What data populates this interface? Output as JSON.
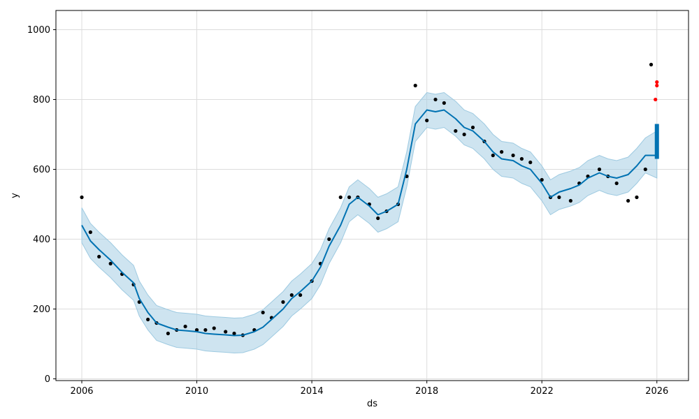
{
  "chart_data": {
    "type": "line",
    "xlabel": "ds",
    "ylabel": "y",
    "xlim": [
      2005.1,
      2027.1
    ],
    "ylim": [
      -5,
      1055
    ],
    "x_ticks": [
      {
        "value": 2006,
        "label": "2006"
      },
      {
        "value": 2010,
        "label": "2010"
      },
      {
        "value": 2014,
        "label": "2014"
      },
      {
        "value": 2018,
        "label": "2018"
      },
      {
        "value": 2022,
        "label": "2022"
      },
      {
        "value": 2026,
        "label": "2026"
      }
    ],
    "y_ticks": [
      {
        "value": 0,
        "label": "0"
      },
      {
        "value": 200,
        "label": "200"
      },
      {
        "value": 400,
        "label": "400"
      },
      {
        "value": 600,
        "label": "600"
      },
      {
        "value": 800,
        "label": "800"
      },
      {
        "value": 1000,
        "label": "1000"
      }
    ],
    "grid": true,
    "colors": {
      "forecast": "#0072B2",
      "band": "#9ecae1",
      "observed": "#000000",
      "outlier": "#ff0000"
    },
    "series": [
      {
        "role": "forecast",
        "x": [
          2006.0,
          2006.3,
          2006.6,
          2007.0,
          2007.4,
          2007.8,
          2008.0,
          2008.3,
          2008.6,
          2009.0,
          2009.3,
          2009.6,
          2010.0,
          2010.3,
          2010.6,
          2011.0,
          2011.3,
          2011.6,
          2012.0,
          2012.3,
          2012.6,
          2013.0,
          2013.3,
          2013.6,
          2014.0,
          2014.3,
          2014.6,
          2015.0,
          2015.3,
          2015.6,
          2016.0,
          2016.3,
          2016.6,
          2017.0,
          2017.3,
          2017.6,
          2018.0,
          2018.3,
          2018.6,
          2019.0,
          2019.3,
          2019.6,
          2020.0,
          2020.3,
          2020.6,
          2021.0,
          2021.3,
          2021.6,
          2022.0,
          2022.3,
          2022.6,
          2023.0,
          2023.3,
          2023.6,
          2024.0,
          2024.3,
          2024.6,
          2025.0,
          2025.3,
          2025.6,
          2026.0
        ],
        "y": [
          440,
          395,
          370,
          340,
          305,
          275,
          230,
          190,
          160,
          148,
          140,
          138,
          135,
          130,
          128,
          126,
          124,
          125,
          135,
          148,
          170,
          200,
          230,
          250,
          280,
          320,
          380,
          440,
          500,
          520,
          495,
          470,
          480,
          500,
          600,
          730,
          770,
          765,
          770,
          745,
          720,
          710,
          680,
          650,
          630,
          625,
          610,
          600,
          560,
          520,
          535,
          545,
          555,
          575,
          590,
          580,
          575,
          585,
          610,
          640,
          640
        ],
        "lower": [
          390,
          345,
          320,
          290,
          255,
          225,
          180,
          140,
          110,
          98,
          90,
          88,
          85,
          80,
          78,
          76,
          74,
          75,
          85,
          98,
          120,
          150,
          180,
          200,
          230,
          270,
          330,
          390,
          450,
          470,
          445,
          420,
          430,
          450,
          550,
          680,
          720,
          715,
          720,
          695,
          670,
          660,
          630,
          600,
          580,
          575,
          560,
          550,
          510,
          470,
          485,
          495,
          505,
          525,
          540,
          530,
          525,
          535,
          560,
          590,
          575
        ],
        "upper": [
          490,
          445,
          420,
          390,
          355,
          325,
          280,
          240,
          210,
          198,
          190,
          188,
          185,
          180,
          178,
          176,
          174,
          175,
          185,
          198,
          220,
          250,
          280,
          300,
          330,
          370,
          430,
          490,
          550,
          570,
          545,
          520,
          530,
          550,
          650,
          780,
          820,
          815,
          820,
          795,
          770,
          760,
          730,
          700,
          680,
          675,
          660,
          650,
          610,
          570,
          585,
          595,
          605,
          625,
          640,
          630,
          625,
          635,
          660,
          690,
          710
        ]
      },
      {
        "role": "observed",
        "x": [
          2006.0,
          2006.3,
          2006.6,
          2007.0,
          2007.4,
          2007.8,
          2008.0,
          2008.3,
          2008.6,
          2009.0,
          2009.3,
          2009.6,
          2010.0,
          2010.3,
          2010.6,
          2011.0,
          2011.3,
          2011.6,
          2012.0,
          2012.3,
          2012.6,
          2013.0,
          2013.3,
          2013.6,
          2014.0,
          2014.3,
          2014.6,
          2015.0,
          2015.3,
          2015.6,
          2016.0,
          2016.3,
          2016.6,
          2017.0,
          2017.3,
          2017.6,
          2018.0,
          2018.3,
          2018.6,
          2019.0,
          2019.3,
          2019.6,
          2020.0,
          2020.3,
          2020.6,
          2021.0,
          2021.3,
          2021.6,
          2022.0,
          2022.3,
          2022.6,
          2023.0,
          2023.3,
          2023.6,
          2024.0,
          2024.3,
          2024.6,
          2025.0,
          2025.3,
          2025.6,
          2025.8
        ],
        "y": [
          520,
          420,
          350,
          330,
          300,
          270,
          220,
          170,
          160,
          130,
          140,
          150,
          140,
          140,
          145,
          135,
          130,
          125,
          140,
          190,
          175,
          220,
          240,
          240,
          280,
          330,
          400,
          520,
          520,
          520,
          500,
          460,
          480,
          500,
          580,
          840,
          740,
          800,
          790,
          710,
          700,
          720,
          680,
          640,
          650,
          640,
          630,
          620,
          570,
          520,
          520,
          510,
          560,
          580,
          600,
          580,
          560,
          510,
          520,
          600,
          900
        ]
      },
      {
        "role": "outlier",
        "x": [
          2025.95,
          2026.0,
          2026.0
        ],
        "y": [
          800,
          840,
          850
        ]
      }
    ]
  }
}
